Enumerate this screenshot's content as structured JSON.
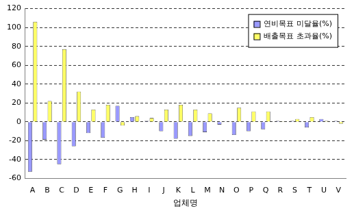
{
  "chart_data": {
    "type": "bar",
    "x_label": "업체명",
    "categories": [
      "A",
      "B",
      "C",
      "D",
      "E",
      "F",
      "G",
      "H",
      "I",
      "J",
      "K",
      "L",
      "M",
      "N",
      "O",
      "P",
      "Q",
      "R",
      "S",
      "T",
      "U",
      "V"
    ],
    "series": [
      {
        "name": "연비목표 미달율(%)",
        "color": "#9999ff",
        "values": [
          -53,
          -19,
          -45,
          -26,
          -12,
          -17,
          17,
          5,
          1,
          -10,
          -18,
          -15,
          -11,
          -3,
          -14,
          -10,
          -8,
          1,
          1,
          -6,
          3,
          1
        ]
      },
      {
        "name": "배출목표 초과율(%)",
        "color": "#ffff66",
        "values": [
          106,
          22,
          77,
          32,
          13,
          18,
          -4,
          6,
          4,
          13,
          18,
          13,
          9,
          0,
          15,
          11,
          11,
          0.5,
          3,
          5,
          1,
          -2
        ]
      }
    ],
    "ylim": [
      -60,
      120
    ],
    "yticks": [
      -60,
      -40,
      -20,
      0,
      20,
      40,
      60,
      80,
      100,
      120
    ],
    "grid": true,
    "legend": "upper right"
  }
}
